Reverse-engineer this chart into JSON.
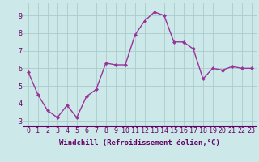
{
  "x": [
    0,
    1,
    2,
    3,
    4,
    5,
    6,
    7,
    8,
    9,
    10,
    11,
    12,
    13,
    14,
    15,
    16,
    17,
    18,
    19,
    20,
    21,
    22,
    23
  ],
  "y": [
    5.8,
    4.5,
    3.6,
    3.2,
    3.9,
    3.2,
    4.4,
    4.8,
    6.3,
    6.2,
    6.2,
    7.9,
    8.7,
    9.2,
    9.0,
    7.5,
    7.5,
    7.1,
    5.4,
    6.0,
    5.9,
    6.1,
    6.0,
    6.0
  ],
  "line_color": "#993399",
  "marker": "D",
  "marker_size": 2.0,
  "line_width": 1.0,
  "bg_color": "#cce8e8",
  "grid_color": "#aacccc",
  "xlabel": "Windchill (Refroidissement éolien,°C)",
  "xlabel_fontsize": 6.5,
  "tick_fontsize": 6.0,
  "xlim": [
    -0.5,
    23.5
  ],
  "ylim": [
    2.7,
    9.7
  ],
  "yticks": [
    3,
    4,
    5,
    6,
    7,
    8,
    9
  ],
  "xticks": [
    0,
    1,
    2,
    3,
    4,
    5,
    6,
    7,
    8,
    9,
    10,
    11,
    12,
    13,
    14,
    15,
    16,
    17,
    18,
    19,
    20,
    21,
    22,
    23
  ],
  "xtick_labels": [
    "0",
    "1",
    "2",
    "3",
    "4",
    "5",
    "6",
    "7",
    "8",
    "9",
    "10",
    "11",
    "12",
    "13",
    "14",
    "15",
    "16",
    "17",
    "18",
    "19",
    "20",
    "21",
    "22",
    "23"
  ],
  "text_color": "#660066",
  "spine_color": "#660066",
  "spine_linewidth": 1.5
}
